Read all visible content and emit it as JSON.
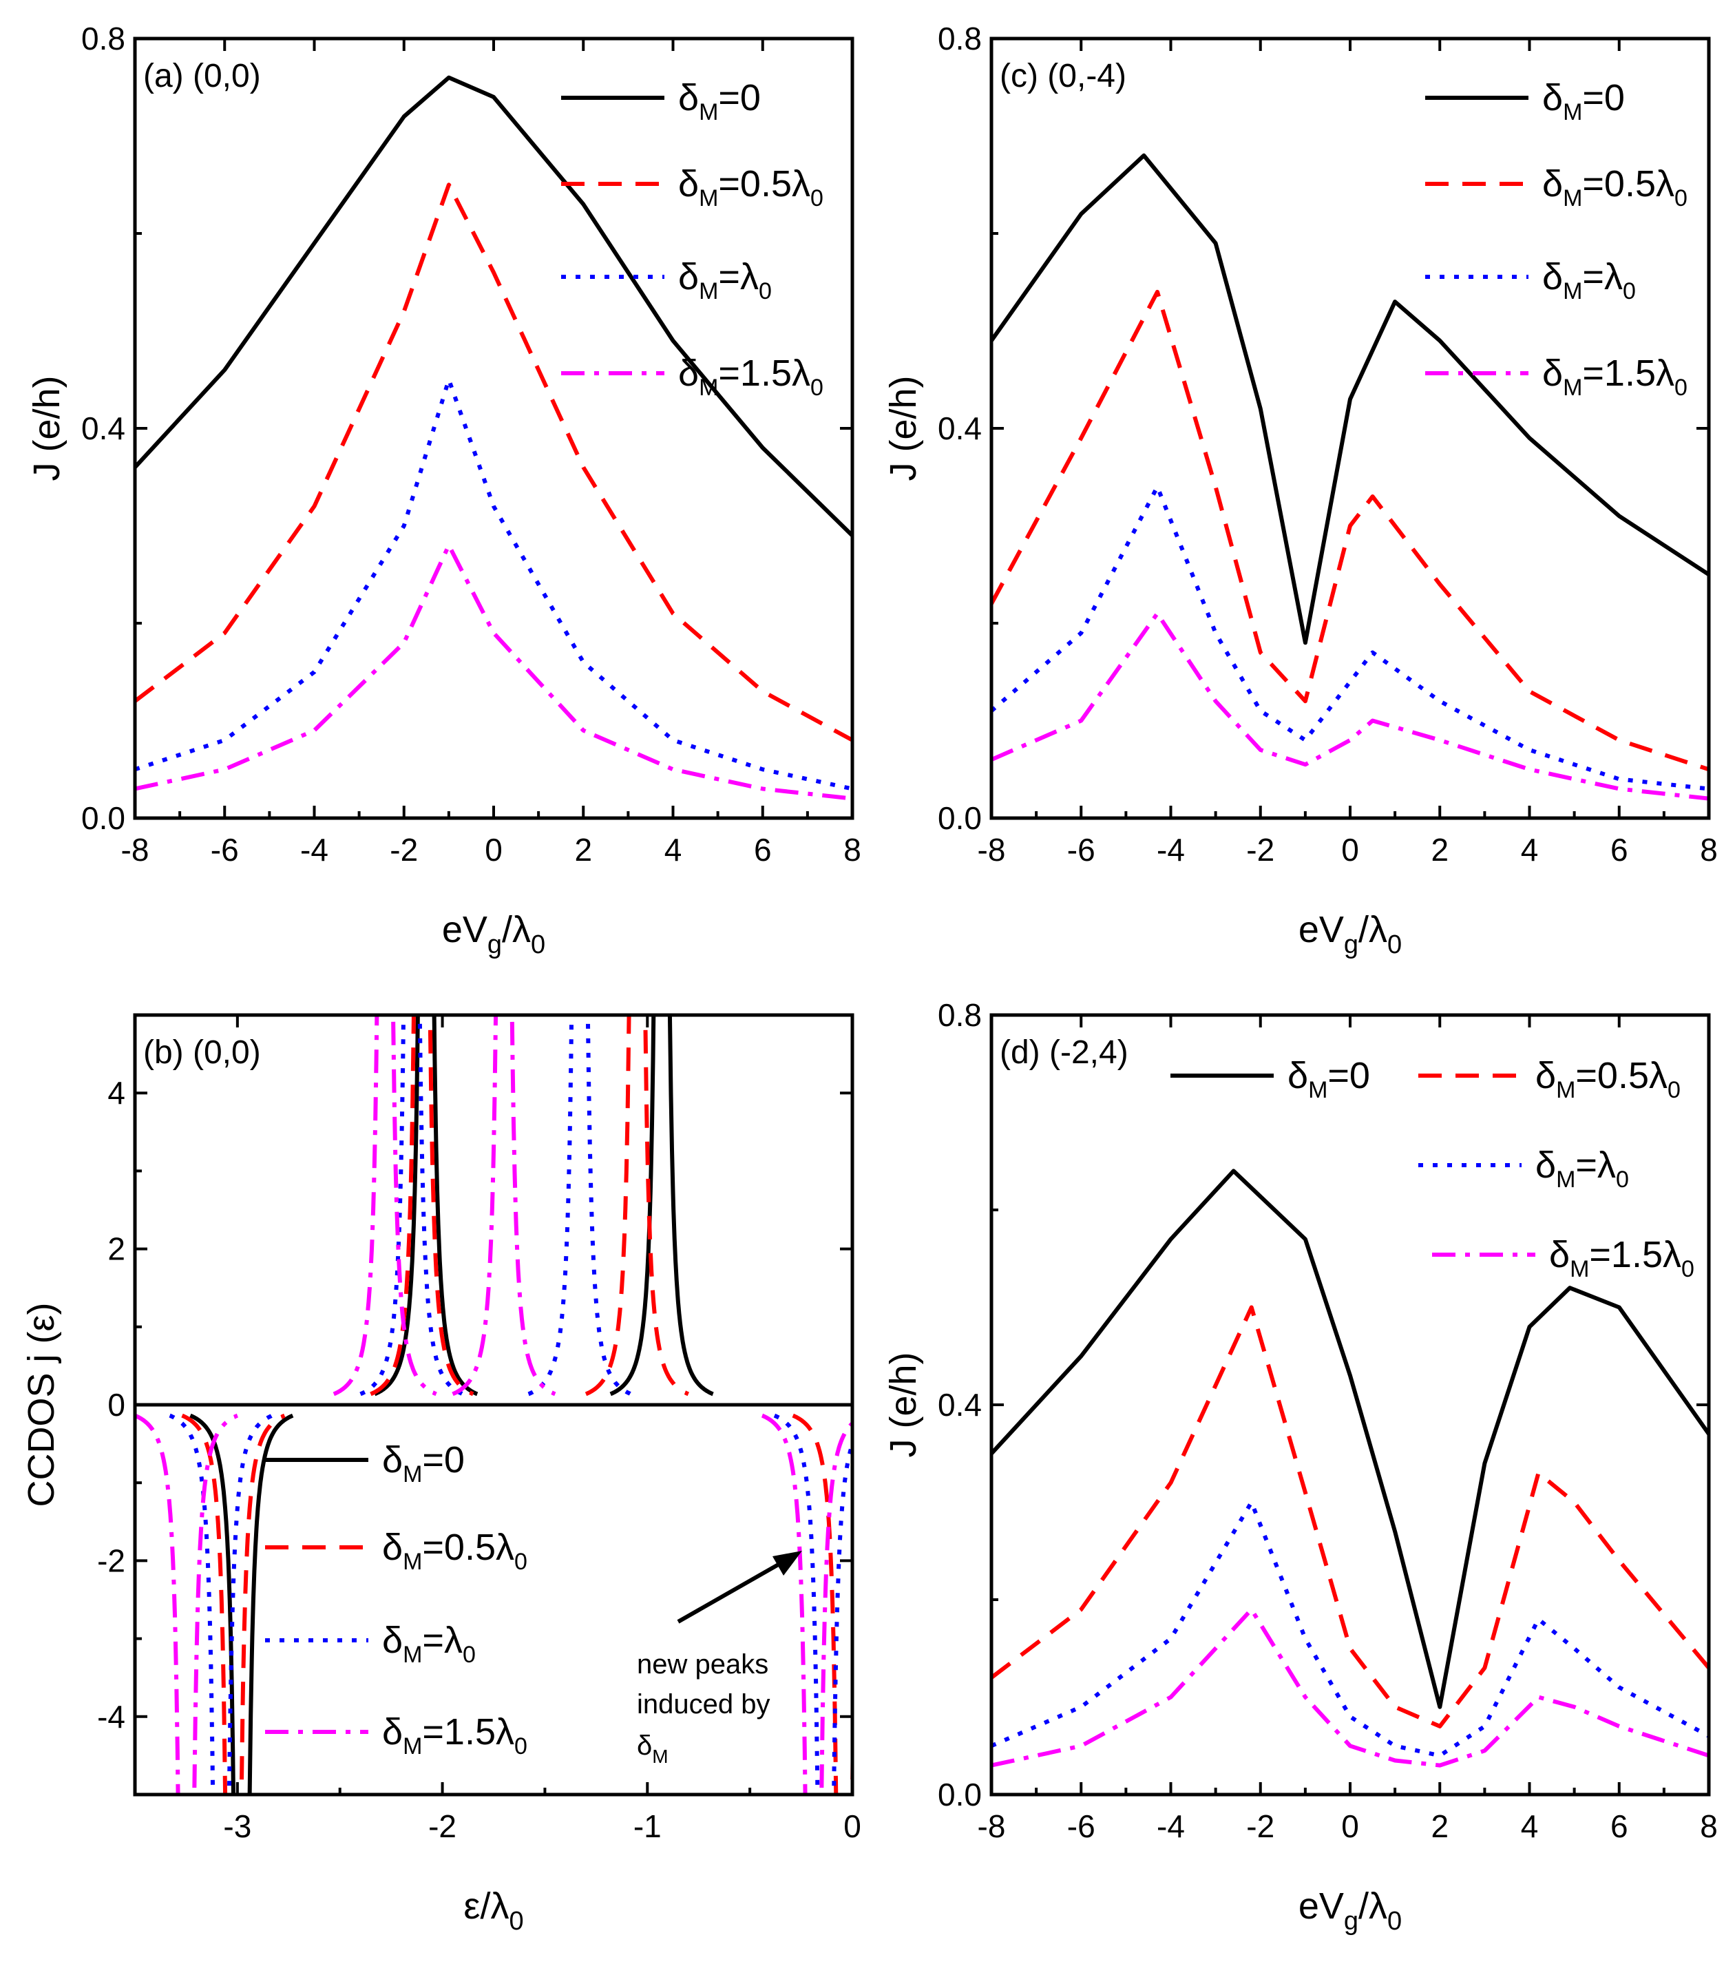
{
  "series_styles": [
    {
      "name": "δM=0",
      "color": "#000000",
      "dash": "solid"
    },
    {
      "name": "δM=0.5λ0",
      "color": "#ff0000",
      "dash": "dashed"
    },
    {
      "name": "δM=λ0",
      "color": "#0000ff",
      "dash": "dotted"
    },
    {
      "name": "δM=1.5λ0",
      "color": "#ff00ff",
      "dash": "dashdot"
    }
  ],
  "legend_text": {
    "delta": "δ",
    "sub_M": "M",
    "lambda": "λ",
    "sub_0": "0",
    "eq0": "=0",
    "eq05": "=0.5",
    "eq1": "=",
    "eq15": "=1.5"
  },
  "axis_text": {
    "J_ylabel": "J (e/h)",
    "eVg_e": "eV",
    "eVg_sub_g": "g",
    "eVg_slash": "/λ",
    "eVg_sub_0": "0",
    "eps_main": "ε/λ",
    "eps_sub_0": "0",
    "ccdos_ylabel": "CCDOS j (ε)"
  },
  "annotation": {
    "line1": "new peaks",
    "line2": "induced by",
    "line3": "δ",
    "line3_sub": "M"
  },
  "chart_data": [
    {
      "id": "a",
      "type": "line",
      "panel_label": "(a) (0,0)",
      "xlim": [
        -8,
        8
      ],
      "ylim": [
        0.0,
        0.8
      ],
      "xticks": [
        "-8",
        "-6",
        "-4",
        "-2",
        "0",
        "2",
        "4",
        "6",
        "8"
      ],
      "yticks": [
        "0.0",
        "0.4",
        "0.8"
      ],
      "ytick_values": [
        0.0,
        0.4,
        0.8
      ],
      "series": [
        {
          "name": "δM=0",
          "x": [
            -8,
            -6,
            -4,
            -2,
            -1,
            0,
            2,
            4,
            6,
            8
          ],
          "y": [
            0.36,
            0.46,
            0.59,
            0.72,
            0.76,
            0.74,
            0.63,
            0.49,
            0.38,
            0.29
          ]
        },
        {
          "name": "δM=0.5λ0",
          "x": [
            -8,
            -6,
            -4,
            -2,
            -1,
            0,
            2,
            4,
            6,
            8
          ],
          "y": [
            0.12,
            0.19,
            0.32,
            0.52,
            0.65,
            0.56,
            0.36,
            0.21,
            0.13,
            0.08
          ]
        },
        {
          "name": "δM=λ0",
          "x": [
            -8,
            -6,
            -4,
            -2,
            -1,
            0,
            2,
            4,
            6,
            8
          ],
          "y": [
            0.05,
            0.08,
            0.15,
            0.3,
            0.45,
            0.32,
            0.16,
            0.08,
            0.05,
            0.03
          ]
        },
        {
          "name": "δM=1.5λ0",
          "x": [
            -8,
            -6,
            -4,
            -2,
            -1,
            0,
            2,
            4,
            6,
            8
          ],
          "y": [
            0.03,
            0.05,
            0.09,
            0.18,
            0.28,
            0.19,
            0.09,
            0.05,
            0.03,
            0.02
          ]
        }
      ]
    },
    {
      "id": "c",
      "type": "line",
      "panel_label": "(c) (0,-4)",
      "xlim": [
        -8,
        8
      ],
      "ylim": [
        0.0,
        0.8
      ],
      "xticks": [
        "-8",
        "-6",
        "-4",
        "-2",
        "0",
        "2",
        "4",
        "6",
        "8"
      ],
      "yticks": [
        "0.0",
        "0.4",
        "0.8"
      ],
      "ytick_values": [
        0.0,
        0.4,
        0.8
      ],
      "series": [
        {
          "name": "δM=0",
          "x": [
            -8,
            -6,
            -4.6,
            -3,
            -2,
            -1,
            0,
            1,
            2,
            4,
            6,
            8
          ],
          "y": [
            0.49,
            0.62,
            0.68,
            0.59,
            0.42,
            0.18,
            0.43,
            0.53,
            0.49,
            0.39,
            0.31,
            0.25
          ]
        },
        {
          "name": "δM=0.5λ0",
          "x": [
            -8,
            -6,
            -4.3,
            -3,
            -2,
            -1,
            0,
            0.5,
            2,
            4,
            6,
            8
          ],
          "y": [
            0.22,
            0.39,
            0.54,
            0.34,
            0.17,
            0.12,
            0.3,
            0.33,
            0.24,
            0.13,
            0.08,
            0.05
          ]
        },
        {
          "name": "δM=λ0",
          "x": [
            -8,
            -6,
            -4.3,
            -3,
            -2,
            -1,
            0,
            0.5,
            2,
            4,
            6,
            8
          ],
          "y": [
            0.11,
            0.19,
            0.34,
            0.19,
            0.11,
            0.08,
            0.14,
            0.17,
            0.12,
            0.07,
            0.04,
            0.03
          ]
        },
        {
          "name": "δM=1.5λ0",
          "x": [
            -8,
            -6,
            -4.3,
            -3,
            -2,
            -1,
            0,
            0.5,
            2,
            4,
            6,
            8
          ],
          "y": [
            0.06,
            0.1,
            0.21,
            0.12,
            0.07,
            0.055,
            0.08,
            0.1,
            0.08,
            0.05,
            0.03,
            0.02
          ]
        }
      ]
    },
    {
      "id": "b",
      "type": "line",
      "panel_label": "(b) (0,0)",
      "xlim": [
        -3.5,
        0
      ],
      "ylim": [
        -5,
        5
      ],
      "xticks": [
        "-3",
        "-2",
        "-1",
        "0"
      ],
      "xtick_values": [
        -3,
        -2,
        -1,
        0
      ],
      "yticks": [
        "-4",
        "-2",
        "0",
        "2",
        "4"
      ],
      "ytick_values": [
        -4,
        -2,
        0,
        2,
        4
      ],
      "series": [
        {
          "name": "δM=0",
          "positive_peaks": [
            -2.08,
            -0.93
          ],
          "negative_peaks": [
            -2.98
          ]
        },
        {
          "name": "δM=0.5λ0",
          "positive_peaks": [
            -2.1,
            -1.05
          ],
          "negative_peaks": [
            -3.02,
            -0.04
          ]
        },
        {
          "name": "δM=λ0",
          "positive_peaks": [
            -2.15,
            -1.33
          ],
          "negative_peaks": [
            -3.08,
            -0.13
          ]
        },
        {
          "name": "δM=1.5λ0",
          "positive_peaks": [
            -2.28,
            -1.7
          ],
          "negative_peaks": [
            -3.25,
            -0.19
          ]
        }
      ]
    },
    {
      "id": "d",
      "type": "line",
      "panel_label": "(d) (-2,4)",
      "xlim": [
        -8,
        8
      ],
      "ylim": [
        0.0,
        0.8
      ],
      "xticks": [
        "-8",
        "-6",
        "-4",
        "-2",
        "0",
        "2",
        "4",
        "6",
        "8"
      ],
      "yticks": [
        "0.0",
        "0.4",
        "0.8"
      ],
      "ytick_values": [
        0.0,
        0.4,
        0.8
      ],
      "series": [
        {
          "name": "δM=0",
          "x": [
            -8,
            -6,
            -4,
            -2.6,
            -1,
            0,
            1,
            2,
            3,
            4,
            4.9,
            6,
            8
          ],
          "y": [
            0.35,
            0.45,
            0.57,
            0.64,
            0.57,
            0.43,
            0.27,
            0.09,
            0.34,
            0.48,
            0.52,
            0.5,
            0.37
          ]
        },
        {
          "name": "δM=0.5λ0",
          "x": [
            -8,
            -6,
            -4,
            -2.2,
            -1,
            0,
            1,
            2,
            3,
            4.2,
            5,
            6,
            8
          ],
          "y": [
            0.12,
            0.19,
            0.32,
            0.5,
            0.31,
            0.15,
            0.09,
            0.07,
            0.13,
            0.33,
            0.3,
            0.24,
            0.13
          ]
        },
        {
          "name": "δM=λ0",
          "x": [
            -8,
            -6,
            -4,
            -2.2,
            -1,
            0,
            1,
            2,
            3,
            4.2,
            5,
            6,
            8
          ],
          "y": [
            0.05,
            0.09,
            0.16,
            0.3,
            0.16,
            0.08,
            0.05,
            0.04,
            0.07,
            0.18,
            0.15,
            0.11,
            0.06
          ]
        },
        {
          "name": "δM=1.5λ0",
          "x": [
            -8,
            -6,
            -4,
            -2.2,
            -1,
            0,
            1,
            2,
            3,
            4.2,
            5,
            6,
            8
          ],
          "y": [
            0.03,
            0.05,
            0.1,
            0.19,
            0.1,
            0.05,
            0.035,
            0.03,
            0.045,
            0.1,
            0.09,
            0.07,
            0.04
          ]
        }
      ]
    }
  ]
}
